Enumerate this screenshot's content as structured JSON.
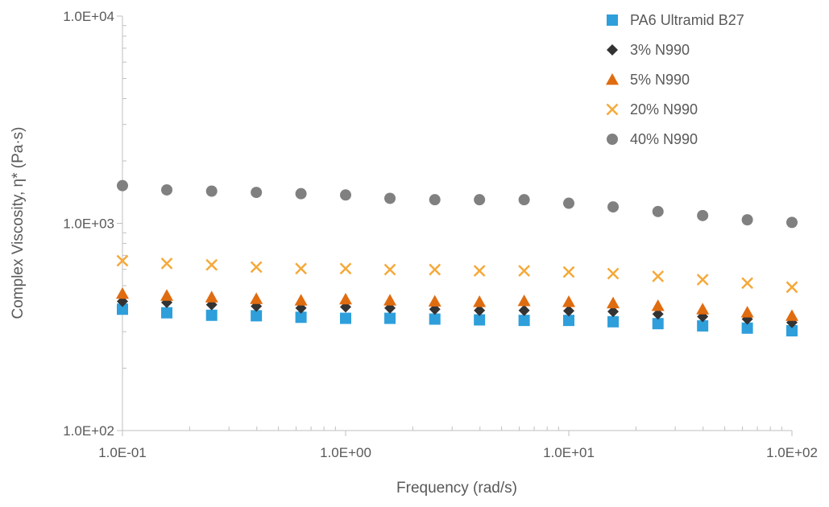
{
  "chart_data": {
    "type": "scatter",
    "xlabel": "Frequency (rad/s)",
    "ylabel": "Complex Viscosity, η* (Pa·s)",
    "x_scale": "log",
    "y_scale": "log",
    "xlim": [
      0.1,
      100
    ],
    "ylim": [
      100,
      10000
    ],
    "x_ticks": [
      {
        "value": 0.1,
        "label": "1.0E-01"
      },
      {
        "value": 1,
        "label": "1.0E+00"
      },
      {
        "value": 10,
        "label": "1.0E+01"
      },
      {
        "value": 100,
        "label": "1.0E+02"
      }
    ],
    "y_ticks": [
      {
        "value": 100,
        "label": "1.0E+02"
      },
      {
        "value": 1000,
        "label": "1.0E+03"
      },
      {
        "value": 10000,
        "label": "1.0E+04"
      }
    ],
    "grid": false,
    "legend_position": "top-right",
    "x": [
      0.1,
      0.158,
      0.251,
      0.398,
      0.631,
      1.0,
      1.58,
      2.51,
      3.98,
      6.31,
      10.0,
      15.8,
      25.1,
      39.8,
      63.1,
      100.0
    ],
    "series": [
      {
        "name": "PA6 Ultramid B27",
        "marker": "square",
        "color": "#2E9FDB",
        "values": [
          385,
          370,
          360,
          358,
          352,
          348,
          348,
          345,
          342,
          340,
          340,
          335,
          328,
          320,
          312,
          303
        ]
      },
      {
        "name": "3% N990",
        "marker": "diamond",
        "color": "#333333",
        "values": [
          420,
          415,
          405,
          398,
          390,
          395,
          390,
          385,
          380,
          380,
          378,
          375,
          365,
          355,
          345,
          332
        ]
      },
      {
        "name": "5% N990",
        "marker": "triangle",
        "color": "#E06C10",
        "values": [
          458,
          448,
          440,
          432,
          425,
          430,
          425,
          420,
          418,
          422,
          418,
          412,
          400,
          385,
          372,
          358
        ]
      },
      {
        "name": "20% N990",
        "marker": "x",
        "color": "#F5A93A",
        "values": [
          660,
          640,
          630,
          615,
          605,
          605,
          598,
          598,
          590,
          590,
          582,
          572,
          555,
          535,
          515,
          492
        ]
      },
      {
        "name": "40% N990",
        "marker": "circle",
        "color": "#808080",
        "values": [
          1520,
          1450,
          1430,
          1410,
          1390,
          1370,
          1320,
          1300,
          1300,
          1300,
          1250,
          1200,
          1140,
          1090,
          1040,
          1010
        ]
      }
    ]
  }
}
